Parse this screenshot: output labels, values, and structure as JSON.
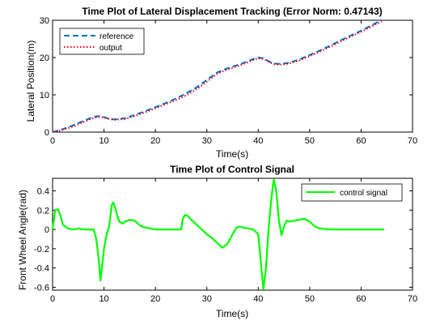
{
  "chart_data": [
    {
      "type": "line",
      "title": "Time Plot of Lateral Displacement Tracking (Error Norm: 0.47143)",
      "xlabel": "Time(s)",
      "ylabel": "Lateral Position(m)",
      "xlim": [
        0,
        70
      ],
      "ylim": [
        0,
        30
      ],
      "xticks": [
        0,
        10,
        20,
        30,
        40,
        50,
        60,
        70
      ],
      "yticks": [
        0,
        10,
        20,
        30
      ],
      "grid": false,
      "legend_position": "top-left",
      "series": [
        {
          "name": "reference",
          "color": "#0072bd",
          "style": "dashed",
          "x": [
            0,
            2,
            4,
            6,
            8,
            9,
            10,
            11,
            12,
            14,
            16,
            18,
            20,
            22,
            24,
            26,
            28,
            30,
            32,
            34,
            36,
            38,
            39,
            40,
            41,
            42,
            43,
            44,
            45,
            46,
            48,
            50,
            52,
            54,
            56,
            58,
            60,
            62,
            64
          ],
          "y": [
            0,
            0.8,
            1.8,
            3.0,
            4.1,
            4.3,
            4.0,
            3.6,
            3.4,
            3.7,
            4.6,
            5.6,
            6.7,
            7.8,
            9.0,
            10.4,
            12.0,
            14.0,
            16.0,
            17.1,
            18.0,
            19.0,
            19.6,
            20.0,
            19.8,
            19.0,
            18.4,
            18.3,
            18.4,
            18.6,
            19.5,
            20.7,
            21.9,
            23.2,
            24.6,
            25.9,
            27.2,
            28.6,
            30.1
          ]
        },
        {
          "name": "output",
          "color": "#e8001c",
          "style": "dotted",
          "x": [
            0,
            2,
            4,
            6,
            8,
            9,
            10,
            11,
            12,
            14,
            16,
            18,
            20,
            22,
            24,
            26,
            28,
            30,
            32,
            34,
            36,
            38,
            39,
            40,
            41,
            42,
            43,
            44,
            45,
            46,
            48,
            50,
            52,
            54,
            56,
            58,
            60,
            62,
            64
          ],
          "y": [
            0,
            0.6,
            1.5,
            2.7,
            3.8,
            4.1,
            3.9,
            3.5,
            3.3,
            3.5,
            4.3,
            5.3,
            6.4,
            7.5,
            8.6,
            9.9,
            11.5,
            13.5,
            15.6,
            16.8,
            17.7,
            18.7,
            19.3,
            19.8,
            19.6,
            18.9,
            18.2,
            18.1,
            18.2,
            18.4,
            19.2,
            20.4,
            21.6,
            22.9,
            24.3,
            25.6,
            26.9,
            28.3,
            29.7
          ]
        }
      ]
    },
    {
      "type": "line",
      "title": "Time Plot of Control Signal",
      "xlabel": "Time(s)",
      "ylabel": "Front Wheel Angle(rad)",
      "xlim": [
        0,
        70
      ],
      "ylim": [
        -0.63,
        0.53
      ],
      "xticks": [
        0,
        10,
        20,
        30,
        40,
        50,
        60,
        70
      ],
      "yticks": [
        -0.6,
        -0.4,
        -0.2,
        0,
        0.2,
        0.4
      ],
      "grid": false,
      "legend_position": "top-right",
      "series": [
        {
          "name": "control signal",
          "color": "#00ff00",
          "style": "solid",
          "x": [
            0,
            0.5,
            1,
            1.5,
            2,
            3,
            4,
            5,
            6,
            7,
            8,
            8.5,
            9,
            9.3,
            9.6,
            10,
            10.5,
            11,
            11.5,
            11.8,
            12.2,
            12.6,
            13,
            13.6,
            14,
            15,
            16,
            17,
            18,
            20,
            22,
            24,
            25,
            25.3,
            25.7,
            26.3,
            27,
            28,
            29,
            30,
            31,
            32,
            33,
            34,
            35,
            35.8,
            36.4,
            37,
            38,
            39,
            40,
            40.6,
            41,
            41.5,
            42,
            42.5,
            43,
            43.5,
            44,
            44.5,
            45,
            45.5,
            46,
            47,
            48,
            49,
            50,
            51,
            52,
            54,
            58,
            62,
            64.5
          ],
          "y": [
            0,
            0.2,
            0.21,
            0.15,
            0.05,
            0.01,
            0,
            0.01,
            0,
            0,
            0,
            -0.1,
            -0.32,
            -0.53,
            -0.4,
            -0.2,
            -0.05,
            0.03,
            0.25,
            0.28,
            0.22,
            0.14,
            0.08,
            0.06,
            0.08,
            0.1,
            0.09,
            0.04,
            0.02,
            0,
            0,
            0,
            0,
            0.1,
            0.15,
            0.14,
            0.1,
            0.05,
            0,
            -0.05,
            -0.09,
            -0.14,
            -0.19,
            -0.15,
            -0.05,
            0.02,
            0.03,
            0.02,
            0.01,
            0,
            -0.05,
            -0.4,
            -0.62,
            -0.4,
            0,
            0.3,
            0.52,
            0.4,
            0.1,
            -0.06,
            0.03,
            0.09,
            0.08,
            0.09,
            0.1,
            0.11,
            0.08,
            0.03,
            0.01,
            0,
            0,
            0,
            0
          ]
        }
      ]
    }
  ]
}
